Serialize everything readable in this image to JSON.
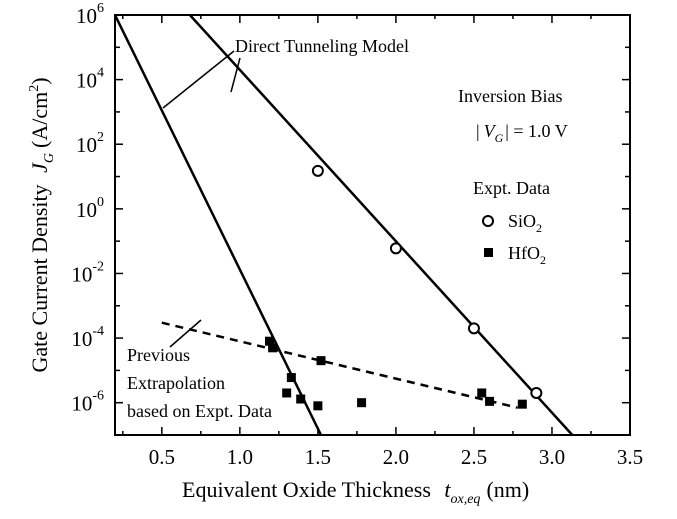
{
  "chart_data": {
    "type": "scatter",
    "xlabel": "Equivalent Oxide Thickness",
    "xlabel_symbol": "t",
    "xlabel_subscript": "ox,eq",
    "xlabel_unit": "(nm)",
    "ylabel": "Gate Current Density",
    "ylabel_symbol": "J",
    "ylabel_subscript": "G",
    "ylabel_unit_pre": "(A/cm",
    "ylabel_unit_sup": "2",
    "ylabel_unit_post": ")",
    "xlim": [
      0.2,
      3.5
    ],
    "ylim": [
      1e-07,
      1000000.0
    ],
    "yscale": "log",
    "grid": false,
    "x_ticks": [
      {
        "value": 0.5,
        "label": "0.5"
      },
      {
        "value": 1.0,
        "label": "1.0"
      },
      {
        "value": 1.5,
        "label": "1.5"
      },
      {
        "value": 2.0,
        "label": "2.0"
      },
      {
        "value": 2.5,
        "label": "2.5"
      },
      {
        "value": 3.0,
        "label": "3.0"
      },
      {
        "value": 3.5,
        "label": "3.5"
      }
    ],
    "y_ticks": [
      {
        "value": 1e-06,
        "base": "10",
        "exp": "-6"
      },
      {
        "value": 0.0001,
        "base": "10",
        "exp": "-4"
      },
      {
        "value": 0.01,
        "base": "10",
        "exp": "-2"
      },
      {
        "value": 1.0,
        "base": "10",
        "exp": "0"
      },
      {
        "value": 100.0,
        "base": "10",
        "exp": "2"
      },
      {
        "value": 10000.0,
        "base": "10",
        "exp": "4"
      },
      {
        "value": 1000000.0,
        "base": "10",
        "exp": "6"
      }
    ],
    "legend": {
      "title": "Expt. Data",
      "position": "right",
      "entries": [
        {
          "key": "sio2",
          "label_main": "SiO",
          "label_sub": "2",
          "marker": "open-circle"
        },
        {
          "key": "hfo2",
          "label_main": "HfO",
          "label_sub": "2",
          "marker": "filled-square"
        }
      ]
    },
    "annotations": {
      "model_label": "Direct Tunneling Model",
      "bias_line1": "Inversion Bias",
      "bias_line2_open": "|",
      "bias_line2_symbol": "V",
      "bias_line2_sub": "G",
      "bias_line2_rest": "| = 1.0 V",
      "previous": [
        "Previous",
        "Extrapolation",
        "based on Expt. Data"
      ]
    },
    "series": [
      {
        "key": "sio2_model",
        "style": "solid-line",
        "points": [
          [
            0.68,
            1000000.0
          ],
          [
            3.13,
            1e-07
          ]
        ]
      },
      {
        "key": "hfo2_model",
        "style": "solid-line",
        "points": [
          [
            0.2,
            1000000.0
          ],
          [
            1.52,
            1e-07
          ]
        ]
      },
      {
        "key": "previous_extrapolation",
        "style": "dashed-line",
        "points": [
          [
            0.5,
            0.0003
          ],
          [
            2.78,
            7e-07
          ]
        ]
      },
      {
        "key": "sio2",
        "name": "SiO2",
        "style": "open-circle",
        "points": [
          [
            1.5,
            15
          ],
          [
            2.0,
            0.06
          ],
          [
            2.5,
            0.0002
          ],
          [
            2.9,
            2e-06
          ]
        ]
      },
      {
        "key": "hfo2",
        "name": "HfO2",
        "style": "filled-square",
        "points": [
          [
            1.19,
            8e-05
          ],
          [
            1.21,
            5e-05
          ],
          [
            1.3,
            2e-06
          ],
          [
            1.33,
            6e-06
          ],
          [
            1.39,
            1.3e-06
          ],
          [
            1.5,
            8e-07
          ],
          [
            1.52,
            2e-05
          ],
          [
            1.78,
            1e-06
          ],
          [
            2.55,
            2e-06
          ],
          [
            2.6,
            1.1e-06
          ],
          [
            2.81,
            9e-07
          ]
        ]
      }
    ]
  }
}
